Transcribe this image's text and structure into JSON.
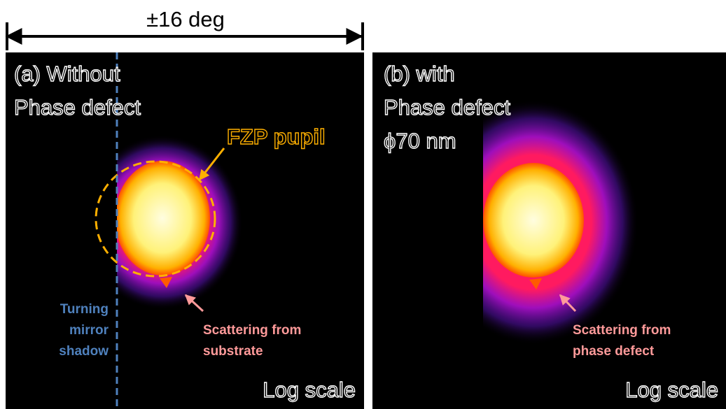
{
  "top_label": "±16 deg",
  "panels": [
    {
      "title_lines": [
        "(a) Without",
        "Phase defect"
      ],
      "pupil_label": "FZP pupil",
      "shadow_label": [
        "Turning",
        "mirror",
        "shadow"
      ],
      "scatter_label": [
        "Scattering from",
        "substrate"
      ],
      "scale_label": "Log scale"
    },
    {
      "title_lines": [
        "(b) with",
        "Phase defect",
        "ϕ70 nm"
      ],
      "scatter_label": [
        "Scattering from",
        "phase defect"
      ],
      "scale_label": "Log scale"
    }
  ]
}
